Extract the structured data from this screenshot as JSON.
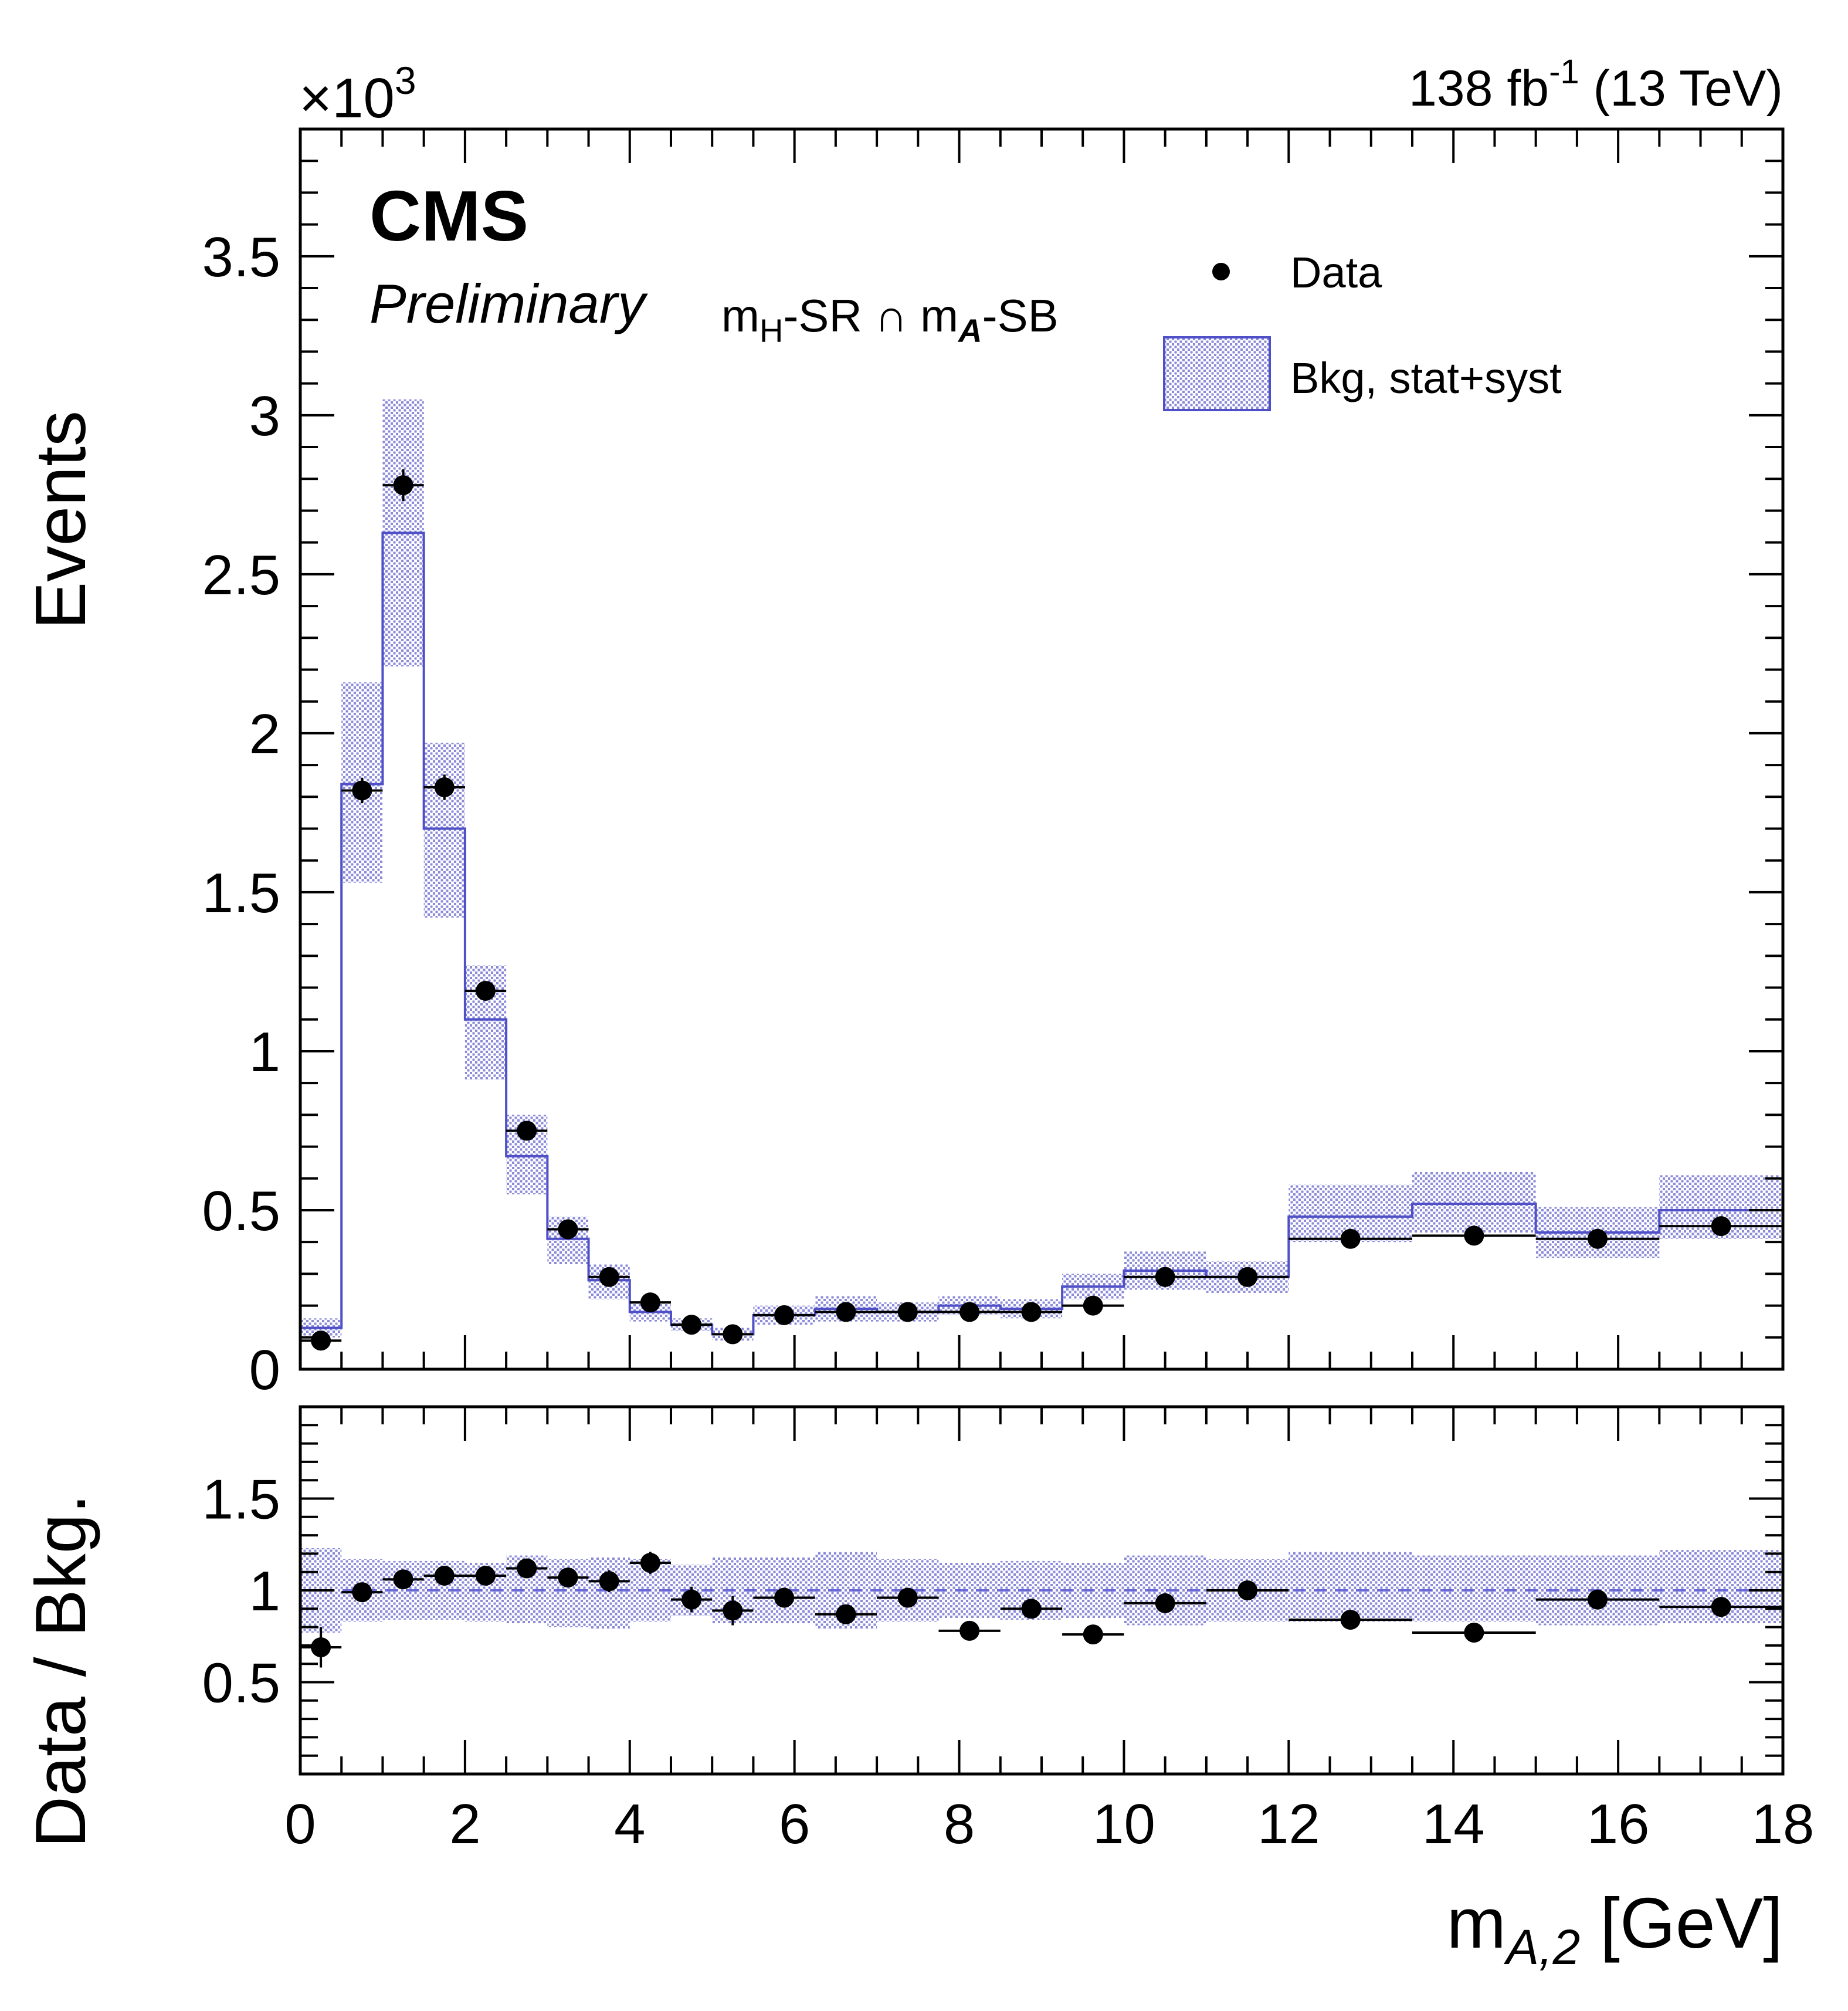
{
  "header": {
    "lumi_main": "138 fb",
    "lumi_sup": "-1",
    "lumi_energy": " (13 TeV)",
    "multiplier_x": "×10",
    "multiplier_exp": "3",
    "cms": "CMS",
    "preliminary": "Preliminary",
    "region": {
      "m1": "m",
      "sub1": "H",
      "mid": "-SR ∩ m",
      "sub2": "A",
      "tail": "-SB"
    }
  },
  "legend": {
    "data_label": "Data",
    "bkg_label": "Bkg, stat+syst"
  },
  "colors": {
    "bkg_line": "#4f4fc8",
    "bkg_band": "#8a8ad8",
    "data": "#000000",
    "dashed": "#6a6ad6"
  },
  "chart_data": [
    {
      "type": "histogram",
      "panel": "main",
      "ylabel": "Events",
      "y_multiplier": "×10^3",
      "ylim": [
        0,
        3.9
      ],
      "xlim": [
        0,
        18
      ],
      "yticks": [
        "0",
        "0.5",
        "1",
        "1.5",
        "2",
        "2.5",
        "3",
        "3.5"
      ],
      "bin_edges": [
        0,
        0.5,
        1.0,
        1.5,
        2.0,
        2.5,
        3.0,
        3.5,
        4.0,
        4.5,
        5.0,
        5.5,
        6.25,
        7.0,
        7.75,
        8.5,
        9.25,
        10.0,
        11.0,
        12.0,
        13.5,
        15.0,
        16.5,
        18.0
      ],
      "series": [
        {
          "name": "Bkg, stat+syst",
          "values": [
            0.13,
            1.84,
            2.63,
            1.7,
            1.1,
            0.67,
            0.41,
            0.28,
            0.18,
            0.14,
            0.11,
            0.17,
            0.19,
            0.18,
            0.2,
            0.19,
            0.26,
            0.31,
            0.29,
            0.48,
            0.52,
            0.43,
            0.5
          ],
          "err_low": [
            0.03,
            0.31,
            0.42,
            0.28,
            0.19,
            0.12,
            0.08,
            0.06,
            0.03,
            0.02,
            0.02,
            0.03,
            0.04,
            0.03,
            0.03,
            0.03,
            0.04,
            0.06,
            0.05,
            0.08,
            0.09,
            0.08,
            0.09
          ],
          "err_high": [
            0.03,
            0.32,
            0.42,
            0.27,
            0.17,
            0.13,
            0.07,
            0.05,
            0.03,
            0.02,
            0.02,
            0.03,
            0.04,
            0.03,
            0.03,
            0.03,
            0.04,
            0.06,
            0.05,
            0.1,
            0.1,
            0.08,
            0.11
          ]
        },
        {
          "name": "Data",
          "values": [
            0.09,
            1.82,
            2.78,
            1.83,
            1.19,
            0.75,
            0.44,
            0.29,
            0.21,
            0.14,
            0.11,
            0.17,
            0.18,
            0.18,
            0.18,
            0.18,
            0.2,
            0.29,
            0.29,
            0.41,
            0.42,
            0.41,
            0.45
          ],
          "err": [
            0.01,
            0.04,
            0.05,
            0.04,
            0.03,
            0.02,
            0.02,
            0.02,
            0.01,
            0.01,
            0.01,
            0.01,
            0.01,
            0.01,
            0.01,
            0.01,
            0.01,
            0.02,
            0.02,
            0.02,
            0.02,
            0.02,
            0.02
          ]
        }
      ]
    },
    {
      "type": "scatter",
      "panel": "ratio",
      "ylabel": "Data / Bkg.",
      "xlabel": "m_{A,2} [GeV]",
      "ylim": [
        0,
        2.0
      ],
      "xlim": [
        0,
        18
      ],
      "yticks": [
        "0.5",
        "1",
        "1.5"
      ],
      "xticks": [
        "0",
        "2",
        "4",
        "6",
        "8",
        "10",
        "12",
        "14",
        "16",
        "18"
      ],
      "ratio": [
        0.69,
        0.99,
        1.06,
        1.08,
        1.08,
        1.12,
        1.07,
        1.05,
        1.15,
        0.95,
        0.89,
        0.96,
        0.87,
        0.96,
        0.78,
        0.9,
        0.76,
        0.93,
        1.0,
        0.84,
        0.77,
        0.95,
        0.91
      ],
      "ratio_err": [
        0.11,
        0.03,
        0.03,
        0.03,
        0.03,
        0.04,
        0.05,
        0.06,
        0.06,
        0.07,
        0.08,
        0.05,
        0.05,
        0.05,
        0.05,
        0.05,
        0.05,
        0.05,
        0.05,
        0.04,
        0.04,
        0.04,
        0.04
      ],
      "band_low": [
        0.77,
        0.83,
        0.84,
        0.84,
        0.83,
        0.82,
        0.8,
        0.79,
        0.83,
        0.86,
        0.82,
        0.82,
        0.79,
        0.83,
        0.85,
        0.84,
        0.85,
        0.81,
        0.83,
        0.83,
        0.83,
        0.81,
        0.82
      ],
      "band_high": [
        1.23,
        1.17,
        1.16,
        1.16,
        1.15,
        1.19,
        1.17,
        1.18,
        1.17,
        1.14,
        1.18,
        1.18,
        1.21,
        1.17,
        1.15,
        1.16,
        1.15,
        1.19,
        1.17,
        1.21,
        1.19,
        1.19,
        1.22
      ]
    }
  ],
  "axes": {
    "main_ylabel": "Events",
    "ratio_ylabel": "Data / Bkg.",
    "xlabel_m": "m",
    "xlabel_sub": "A,2",
    "xlabel_unit": " [GeV]"
  }
}
